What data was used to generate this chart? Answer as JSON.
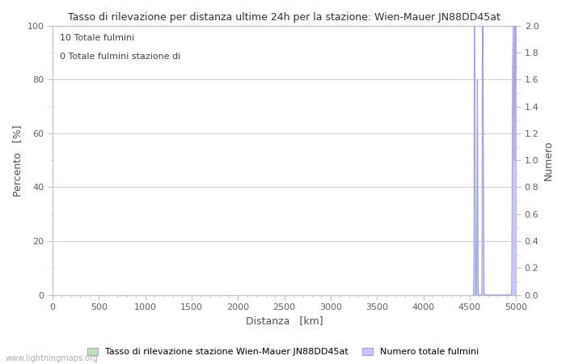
{
  "title": "Tasso di rilevazione per distanza ultime 24h per la stazione: Wien-Mauer JN88DD45at",
  "xlabel": "Distanza   [km]",
  "ylabel_left": "Percento   [%]",
  "ylabel_right": "Numero",
  "annotation_line1": "10 Totale fulmini",
  "annotation_line2": "0 Totale fulmini stazione di",
  "xlim": [
    0,
    5000
  ],
  "ylim_left": [
    0,
    100
  ],
  "ylim_right": [
    0,
    2.0
  ],
  "xticks": [
    0,
    500,
    1000,
    1500,
    2000,
    2500,
    3000,
    3500,
    4000,
    4500,
    5000
  ],
  "yticks_left": [
    0,
    20,
    40,
    60,
    80,
    100
  ],
  "yticks_right": [
    0.0,
    0.2,
    0.4,
    0.6,
    0.8,
    1.0,
    1.2,
    1.4,
    1.6,
    1.8,
    2.0
  ],
  "background_color": "#ffffff",
  "grid_color": "#c8c8c8",
  "spine_color": "#c0c0c0",
  "tick_color": "#606060",
  "label_color": "#505050",
  "bar_color_detection": "#c0dfc0",
  "bar_color_total": "#c8c8f8",
  "line_color_total": "#a0a0e8",
  "watermark": "www.lightningmaps.org",
  "legend_label_detection": "Tasso di rilevazione stazione Wien-Mauer JN88DD45at",
  "legend_label_total": "Numero totale fulmini",
  "spike_data": [
    [
      4540,
      0.0
    ],
    [
      4543,
      0.1
    ],
    [
      4546,
      0.4
    ],
    [
      4549,
      2.0
    ],
    [
      4552,
      2.0
    ],
    [
      4555,
      1.6
    ],
    [
      4558,
      0.8
    ],
    [
      4561,
      0.4
    ],
    [
      4564,
      0.1
    ],
    [
      4567,
      0.0
    ],
    [
      4570,
      0.0
    ],
    [
      4573,
      0.1
    ],
    [
      4576,
      0.5
    ],
    [
      4579,
      1.2
    ],
    [
      4582,
      1.6
    ],
    [
      4585,
      1.2
    ],
    [
      4588,
      0.5
    ],
    [
      4591,
      0.1
    ],
    [
      4594,
      0.0
    ],
    [
      4630,
      0.0
    ],
    [
      4633,
      0.4
    ],
    [
      4636,
      1.8
    ],
    [
      4639,
      2.0
    ],
    [
      4642,
      2.0
    ],
    [
      4645,
      1.5
    ],
    [
      4648,
      0.8
    ],
    [
      4651,
      0.4
    ],
    [
      4654,
      0.05
    ],
    [
      4657,
      0.0
    ],
    [
      4950,
      0.0
    ],
    [
      4953,
      0.1
    ],
    [
      4956,
      0.5
    ],
    [
      4959,
      1.2
    ],
    [
      4962,
      1.7
    ],
    [
      4965,
      1.8
    ],
    [
      4968,
      2.0
    ],
    [
      4971,
      1.8
    ],
    [
      4974,
      1.3
    ],
    [
      4977,
      1.0
    ],
    [
      4980,
      1.2
    ],
    [
      4983,
      1.5
    ],
    [
      4986,
      1.8
    ],
    [
      4989,
      2.0
    ],
    [
      4992,
      1.8
    ],
    [
      4995,
      1.5
    ],
    [
      4998,
      1.2
    ],
    [
      5000,
      1.0
    ]
  ]
}
